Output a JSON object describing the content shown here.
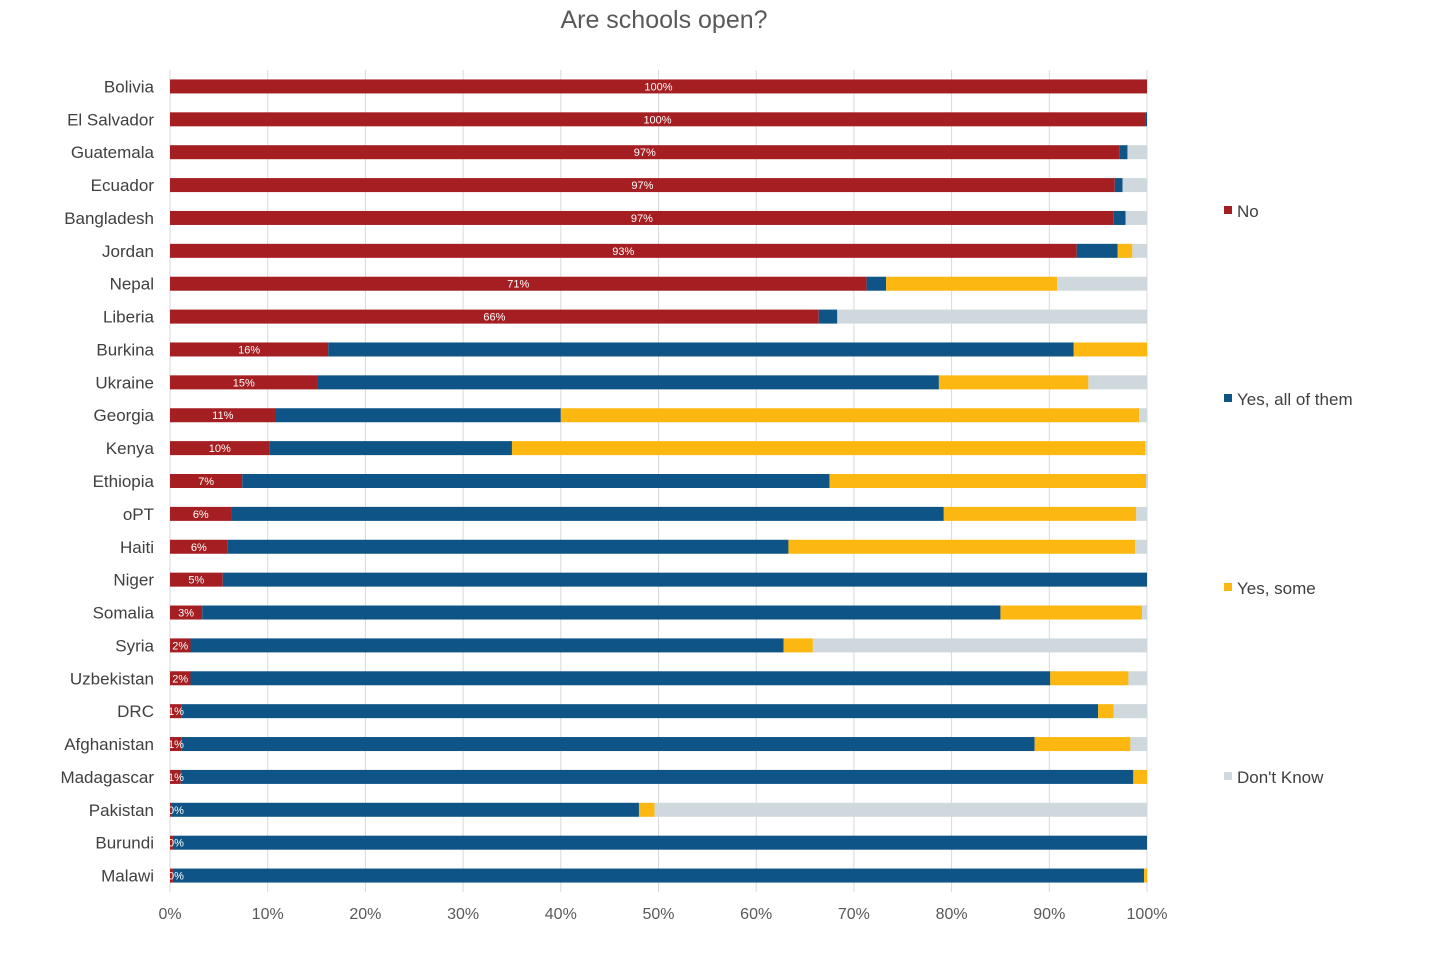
{
  "chart_data": {
    "type": "bar",
    "orientation": "horizontal",
    "stacked": true,
    "percent": true,
    "title": "Are schools open?",
    "categories": [
      "Bolivia",
      "El Salvador",
      "Guatemala",
      "Ecuador",
      "Bangladesh",
      "Jordan",
      "Nepal",
      "Liberia",
      "Burkina",
      "Ukraine",
      "Georgia",
      "Kenya",
      "Ethiopia",
      "oPT",
      "Haiti",
      "Niger",
      "Somalia",
      "Syria",
      "Uzbekistan",
      "DRC",
      "Afghanistan",
      "Madagascar",
      "Pakistan",
      "Burundi",
      "Malawi"
    ],
    "series": [
      {
        "name": "No",
        "color": "#A51E22",
        "values": [
          100,
          99.8,
          97.2,
          96.7,
          96.6,
          92.8,
          71.3,
          66.4,
          16.2,
          15.1,
          10.8,
          10.2,
          7.4,
          6.3,
          5.9,
          5.4,
          3.3,
          2.1,
          2.1,
          1.2,
          1.2,
          1.1,
          0.2,
          0.3,
          0.3
        ]
      },
      {
        "name": "Yes, all of them",
        "color": "#0E5486",
        "values": [
          0,
          0.2,
          0.8,
          0.8,
          1.2,
          4.2,
          2.0,
          1.9,
          76.3,
          63.6,
          29.2,
          24.8,
          60.1,
          72.9,
          57.4,
          94.6,
          81.7,
          60.7,
          88.0,
          93.8,
          87.3,
          97.5,
          47.8,
          99.7,
          99.4
        ]
      },
      {
        "name": "Yes, some",
        "color": "#FCB711",
        "values": [
          0,
          0,
          0,
          0,
          0,
          1.5,
          17.5,
          0,
          7.5,
          15.3,
          59.2,
          64.8,
          32.4,
          19.7,
          35.5,
          0,
          14.5,
          3.0,
          8.0,
          1.6,
          9.8,
          1.4,
          1.6,
          0,
          0.3
        ]
      },
      {
        "name": "Don't Know",
        "color": "#CFD8DC",
        "values": [
          0,
          0,
          2.0,
          2.5,
          2.2,
          1.5,
          9.2,
          31.7,
          0,
          6.0,
          0.8,
          0.2,
          0.2,
          1.1,
          1.2,
          0,
          0.5,
          34.2,
          1.9,
          3.4,
          1.7,
          0,
          50.4,
          0,
          0
        ]
      }
    ],
    "data_labels": [
      "100%",
      "100%",
      "97%",
      "97%",
      "97%",
      "93%",
      "71%",
      "66%",
      "16%",
      "15%",
      "11%",
      "10%",
      "7%",
      "6%",
      "6%",
      "5%",
      "3%",
      "2%",
      "2%",
      "1%",
      "1%",
      "1%",
      "0%",
      "0%",
      "0%"
    ],
    "xticks": [
      "0%",
      "10%",
      "20%",
      "30%",
      "40%",
      "50%",
      "60%",
      "70%",
      "80%",
      "90%",
      "100%"
    ],
    "xlim": [
      0,
      100
    ],
    "grid": true,
    "legend": "right"
  }
}
